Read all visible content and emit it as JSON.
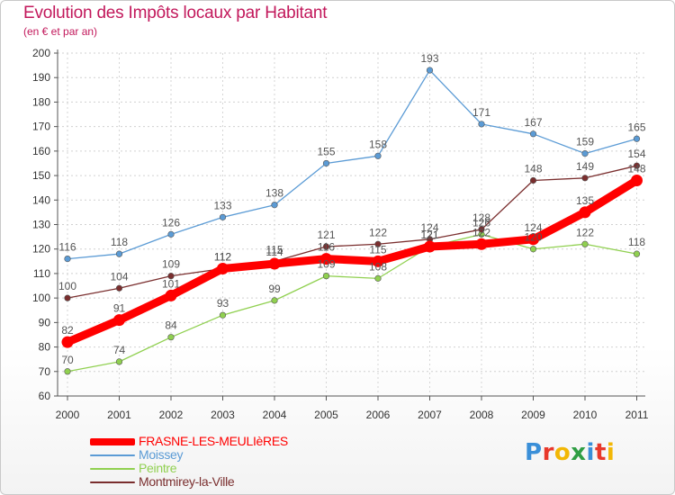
{
  "header": {
    "title": "Evolution des Impôts locaux par Habitant",
    "subtitle": "(en € et par an)"
  },
  "logo": {
    "text": "Proxiti"
  },
  "chart_data": {
    "type": "line",
    "title": "Evolution des Impôts locaux par Habitant",
    "subtitle": "(en € et par an)",
    "x": [
      2000,
      2001,
      2002,
      2003,
      2004,
      2005,
      2006,
      2007,
      2008,
      2009,
      2010,
      2011
    ],
    "ylim": [
      60,
      200
    ],
    "yticks": [
      60,
      70,
      80,
      90,
      100,
      110,
      120,
      130,
      140,
      150,
      160,
      170,
      180,
      190,
      200
    ],
    "grid": true,
    "legend_position": "bottom-left",
    "series": [
      {
        "name": "FRASNE-LES-MEULIèRES",
        "color": "#ff0000",
        "values": [
          82,
          91,
          101,
          112,
          114,
          116,
          115,
          121,
          122,
          124,
          135,
          148
        ],
        "labels": [
          "82",
          "91",
          "101",
          "112",
          "114",
          "116",
          "115",
          "121",
          "122",
          "124",
          "135",
          "148"
        ]
      },
      {
        "name": "Moissey",
        "color": "#5b9bd5",
        "values": [
          116,
          118,
          126,
          133,
          138,
          155,
          158,
          193,
          171,
          167,
          159,
          165
        ],
        "labels": [
          "116",
          "118",
          "126",
          "133",
          "138",
          "155",
          "158",
          "193",
          "171",
          "167",
          "159",
          "165"
        ]
      },
      {
        "name": "Peintre",
        "color": "#90d050",
        "values": [
          70,
          74,
          84,
          93,
          99,
          109,
          108,
          121,
          126,
          120,
          122,
          118
        ],
        "labels": [
          "70",
          "74",
          "84",
          "93",
          "99",
          "109",
          "108",
          "121",
          "126",
          "120",
          "122",
          "118"
        ]
      },
      {
        "name": "Montmirey-la-Ville",
        "color": "#7a2e2e",
        "values": [
          100,
          104,
          109,
          112,
          115,
          121,
          122,
          124,
          128,
          148,
          149,
          154
        ],
        "labels": [
          "100",
          "104",
          "109",
          "112",
          "115",
          "121",
          "122",
          "124",
          "128",
          "148",
          "149",
          "154"
        ]
      }
    ]
  }
}
